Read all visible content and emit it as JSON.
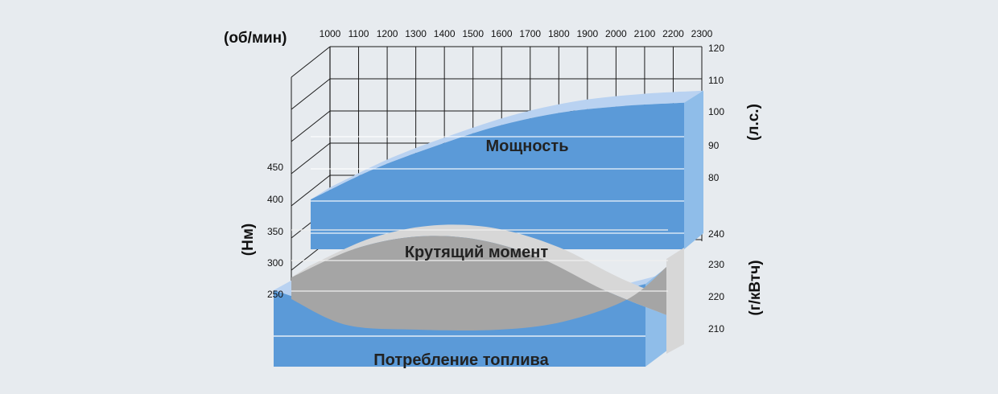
{
  "chart_data": {
    "type": "area",
    "title": "",
    "x_axis": {
      "unit": "(об/мин)",
      "ticks": [
        "1000",
        "1100",
        "1200",
        "1300",
        "1400",
        "1500",
        "1600",
        "1700",
        "1800",
        "1900",
        "2000",
        "2100",
        "2200",
        "2300"
      ]
    },
    "power_axis": {
      "unit": "(л.с.)",
      "ticks": [
        "120",
        "110",
        "100",
        "90",
        "80"
      ]
    },
    "torque_axis": {
      "unit": "(Нм)",
      "ticks": [
        "450",
        "400",
        "350",
        "300",
        "250"
      ]
    },
    "consumption_axis": {
      "unit": "(г/кВтч)",
      "ticks": [
        "240",
        "230",
        "220",
        "210"
      ]
    },
    "series": [
      {
        "name": "Мощность",
        "axis": "power",
        "x": [
          1000,
          1200,
          1400,
          1600,
          1800,
          2000,
          2200
        ],
        "values": [
          79,
          88,
          95,
          101,
          105,
          107,
          108
        ]
      },
      {
        "name": "Крутящий момент",
        "axis": "torque",
        "x": [
          1000,
          1200,
          1400,
          1600,
          1800,
          2000,
          2200
        ],
        "values": [
          350,
          395,
          415,
          410,
          380,
          330,
          290
        ]
      },
      {
        "name": "Потребление топлива",
        "axis": "consumption",
        "x": [
          1000,
          1200,
          1400,
          1600,
          1800,
          2000,
          2200
        ],
        "values": [
          219,
          213,
          211,
          210,
          212,
          216,
          221
        ]
      }
    ],
    "colors": {
      "power": "#5b9ad8",
      "power_top": "#b9d2f1",
      "torque": "#a5a5a5",
      "torque_top": "#d7d7d7",
      "consumption": "#5b9ad8",
      "consumption_top": "#b9d2f1",
      "grid": "#1a1a1a",
      "background": "#e7ebef"
    }
  }
}
